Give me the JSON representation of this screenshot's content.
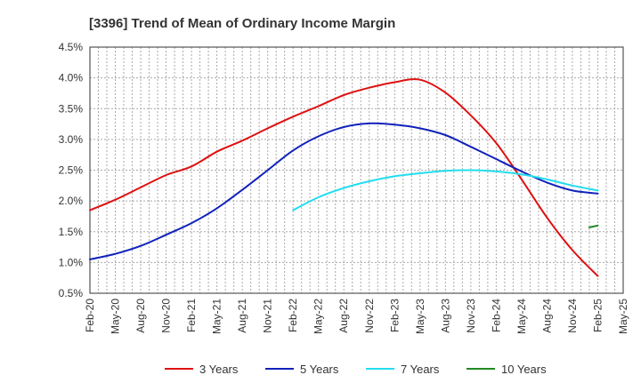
{
  "chart_data": {
    "type": "line",
    "title": "[3396]  Trend of Mean of Ordinary Income Margin",
    "xlabel": "",
    "ylabel": "",
    "x_ticks": [
      "Feb-20",
      "May-20",
      "Aug-20",
      "Nov-20",
      "Feb-21",
      "May-21",
      "Aug-21",
      "Nov-21",
      "Feb-22",
      "May-22",
      "Aug-22",
      "Nov-22",
      "Feb-23",
      "May-23",
      "Aug-23",
      "Nov-23",
      "Feb-24",
      "May-24",
      "Aug-24",
      "Nov-24",
      "Feb-25",
      "May-25"
    ],
    "y_ticks": [
      "0.5%",
      "1.0%",
      "1.5%",
      "2.0%",
      "2.5%",
      "3.0%",
      "3.5%",
      "4.0%",
      "4.5%"
    ],
    "ylim": [
      0.5,
      4.5
    ],
    "y_unit": "%",
    "grid": true,
    "legend_position": "bottom",
    "series": [
      {
        "name": "3 Years",
        "color": "#dd1111",
        "points": [
          [
            "Feb-20",
            1.85
          ],
          [
            "May-20",
            2.02
          ],
          [
            "Aug-20",
            2.22
          ],
          [
            "Nov-20",
            2.42
          ],
          [
            "Feb-21",
            2.56
          ],
          [
            "May-21",
            2.8
          ],
          [
            "Aug-21",
            2.98
          ],
          [
            "Nov-21",
            3.18
          ],
          [
            "Feb-22",
            3.37
          ],
          [
            "May-22",
            3.54
          ],
          [
            "Aug-22",
            3.72
          ],
          [
            "Nov-22",
            3.84
          ],
          [
            "Feb-23",
            3.93
          ],
          [
            "May-23",
            3.97
          ],
          [
            "Aug-23",
            3.76
          ],
          [
            "Nov-23",
            3.39
          ],
          [
            "Feb-24",
            2.94
          ],
          [
            "May-24",
            2.35
          ],
          [
            "Aug-24",
            1.73
          ],
          [
            "Nov-24",
            1.2
          ],
          [
            "Feb-25",
            0.78
          ]
        ]
      },
      {
        "name": "5 Years",
        "color": "#1122bb",
        "points": [
          [
            "Feb-20",
            1.05
          ],
          [
            "May-20",
            1.14
          ],
          [
            "Aug-20",
            1.27
          ],
          [
            "Nov-20",
            1.45
          ],
          [
            "Feb-21",
            1.64
          ],
          [
            "May-21",
            1.88
          ],
          [
            "Aug-21",
            2.18
          ],
          [
            "Nov-21",
            2.5
          ],
          [
            "Feb-22",
            2.82
          ],
          [
            "May-22",
            3.05
          ],
          [
            "Aug-22",
            3.2
          ],
          [
            "Nov-22",
            3.26
          ],
          [
            "Feb-23",
            3.24
          ],
          [
            "May-23",
            3.18
          ],
          [
            "Aug-23",
            3.07
          ],
          [
            "Nov-23",
            2.88
          ],
          [
            "Feb-24",
            2.68
          ],
          [
            "May-24",
            2.48
          ],
          [
            "Aug-24",
            2.3
          ],
          [
            "Nov-24",
            2.17
          ],
          [
            "Feb-25",
            2.12
          ]
        ]
      },
      {
        "name": "7 Years",
        "color": "#22ddee",
        "points": [
          [
            "Feb-22",
            1.85
          ],
          [
            "May-22",
            2.06
          ],
          [
            "Aug-22",
            2.21
          ],
          [
            "Nov-22",
            2.32
          ],
          [
            "Feb-23",
            2.4
          ],
          [
            "May-23",
            2.45
          ],
          [
            "Aug-23",
            2.49
          ],
          [
            "Nov-23",
            2.5
          ],
          [
            "Feb-24",
            2.48
          ],
          [
            "May-24",
            2.43
          ],
          [
            "Aug-24",
            2.35
          ],
          [
            "Nov-24",
            2.25
          ],
          [
            "Feb-25",
            2.17
          ]
        ]
      },
      {
        "name": "10 Years",
        "color": "#228822",
        "points": [
          [
            "Jan-25",
            1.57
          ],
          [
            "Feb-25",
            1.6
          ]
        ]
      }
    ]
  }
}
